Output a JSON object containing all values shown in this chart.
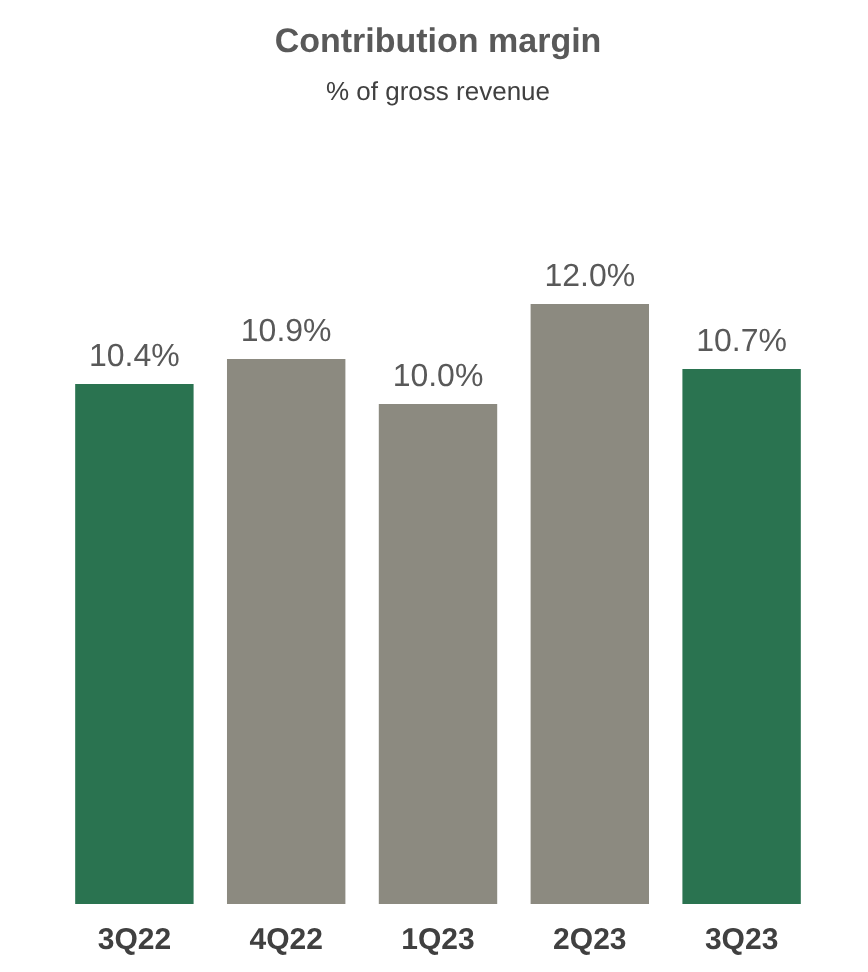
{
  "chart_data": {
    "type": "bar",
    "title": "Contribution margin",
    "subtitle": "% of gross revenue",
    "categories": [
      "3Q22",
      "4Q22",
      "1Q23",
      "2Q23",
      "3Q23"
    ],
    "values": [
      10.4,
      10.9,
      10.0,
      12.0,
      10.7
    ],
    "colors": [
      "#2a7350",
      "#8c8a80",
      "#8c8a80",
      "#8c8a80",
      "#2a7350"
    ],
    "value_labels": [
      "10.4%",
      "10.9%",
      "10.0%",
      "12.0%",
      "10.7%"
    ]
  }
}
